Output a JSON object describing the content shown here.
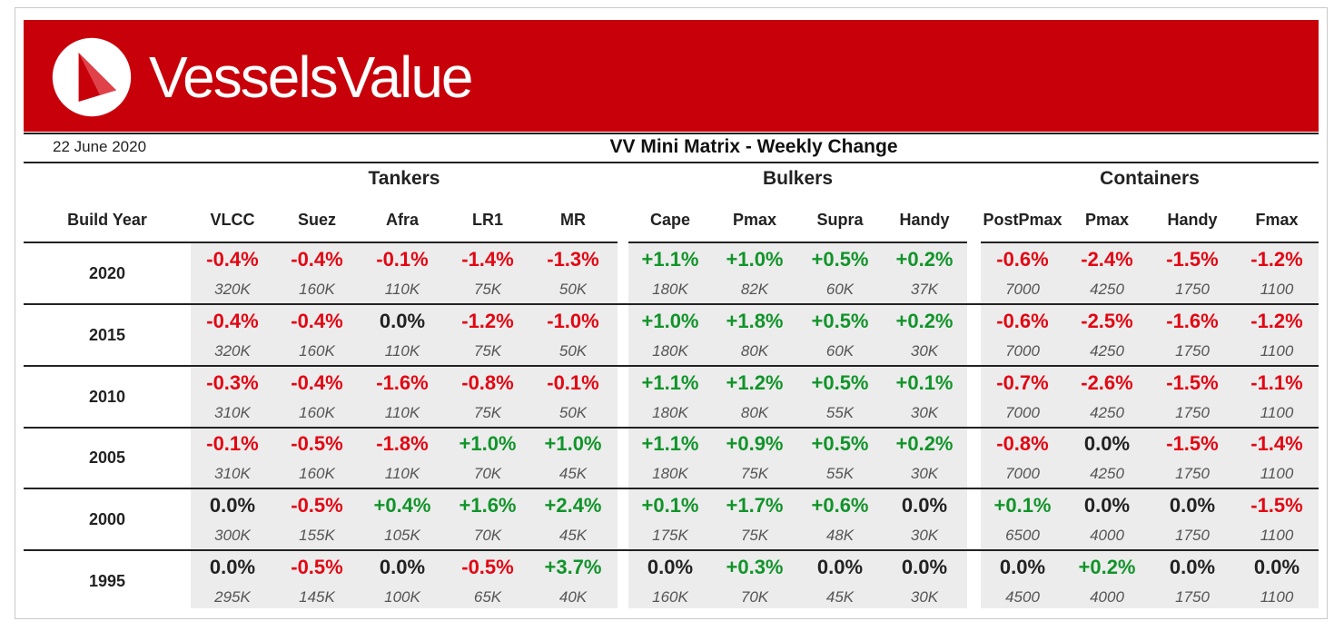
{
  "header": {
    "brand": "VesselsValue",
    "date": "22 June 2020",
    "title": "VV Mini Matrix - Weekly Change",
    "colors": {
      "banner": "#c8000a",
      "negative": "#e30613",
      "positive": "#11942a"
    }
  },
  "table": {
    "row_header": "Build Year",
    "groups": [
      {
        "name": "Tankers",
        "columns": [
          "VLCC",
          "Suez",
          "Afra",
          "LR1",
          "MR"
        ]
      },
      {
        "name": "Bulkers",
        "columns": [
          "Cape",
          "Pmax",
          "Supra",
          "Handy"
        ]
      },
      {
        "name": "Containers",
        "columns": [
          "Post Pmax",
          "Pmax",
          "Handy",
          "Fmax"
        ]
      }
    ],
    "rows": [
      {
        "year": "2020",
        "changes": [
          "-0.4%",
          "-0.4%",
          "-0.1%",
          "-1.4%",
          "-1.3%",
          "+1.1%",
          "+1.0%",
          "+0.5%",
          "+0.2%",
          "-0.6%",
          "-2.4%",
          "-1.5%",
          "-1.2%"
        ],
        "values": [
          "320K",
          "160K",
          "110K",
          "75K",
          "50K",
          "180K",
          "82K",
          "60K",
          "37K",
          "7000",
          "4250",
          "1750",
          "1100"
        ]
      },
      {
        "year": "2015",
        "changes": [
          "-0.4%",
          "-0.4%",
          "0.0%",
          "-1.2%",
          "-1.0%",
          "+1.0%",
          "+1.8%",
          "+0.5%",
          "+0.2%",
          "-0.6%",
          "-2.5%",
          "-1.6%",
          "-1.2%"
        ],
        "values": [
          "320K",
          "160K",
          "110K",
          "75K",
          "50K",
          "180K",
          "80K",
          "60K",
          "30K",
          "7000",
          "4250",
          "1750",
          "1100"
        ]
      },
      {
        "year": "2010",
        "changes": [
          "-0.3%",
          "-0.4%",
          "-1.6%",
          "-0.8%",
          "-0.1%",
          "+1.1%",
          "+1.2%",
          "+0.5%",
          "+0.1%",
          "-0.7%",
          "-2.6%",
          "-1.5%",
          "-1.1%"
        ],
        "values": [
          "310K",
          "160K",
          "110K",
          "75K",
          "50K",
          "180K",
          "80K",
          "55K",
          "30K",
          "7000",
          "4250",
          "1750",
          "1100"
        ]
      },
      {
        "year": "2005",
        "changes": [
          "-0.1%",
          "-0.5%",
          "-1.8%",
          "+1.0%",
          "+1.0%",
          "+1.1%",
          "+0.9%",
          "+0.5%",
          "+0.2%",
          "-0.8%",
          "0.0%",
          "-1.5%",
          "-1.4%"
        ],
        "values": [
          "310K",
          "160K",
          "110K",
          "70K",
          "45K",
          "180K",
          "75K",
          "55K",
          "30K",
          "7000",
          "4250",
          "1750",
          "1100"
        ]
      },
      {
        "year": "2000",
        "changes": [
          "0.0%",
          "-0.5%",
          "+0.4%",
          "+1.6%",
          "+2.4%",
          "+0.1%",
          "+1.7%",
          "+0.6%",
          "0.0%",
          "+0.1%",
          "0.0%",
          "0.0%",
          "-1.5%"
        ],
        "values": [
          "300K",
          "155K",
          "105K",
          "70K",
          "45K",
          "175K",
          "75K",
          "48K",
          "30K",
          "6500",
          "4000",
          "1750",
          "1100"
        ]
      },
      {
        "year": "1995",
        "changes": [
          "0.0%",
          "-0.5%",
          "0.0%",
          "-0.5%",
          "+3.7%",
          "0.0%",
          "+0.3%",
          "0.0%",
          "0.0%",
          "0.0%",
          "+0.2%",
          "0.0%",
          "0.0%"
        ],
        "values": [
          "295K",
          "145K",
          "100K",
          "65K",
          "40K",
          "160K",
          "70K",
          "45K",
          "30K",
          "4500",
          "4000",
          "1750",
          "1100"
        ]
      }
    ]
  }
}
